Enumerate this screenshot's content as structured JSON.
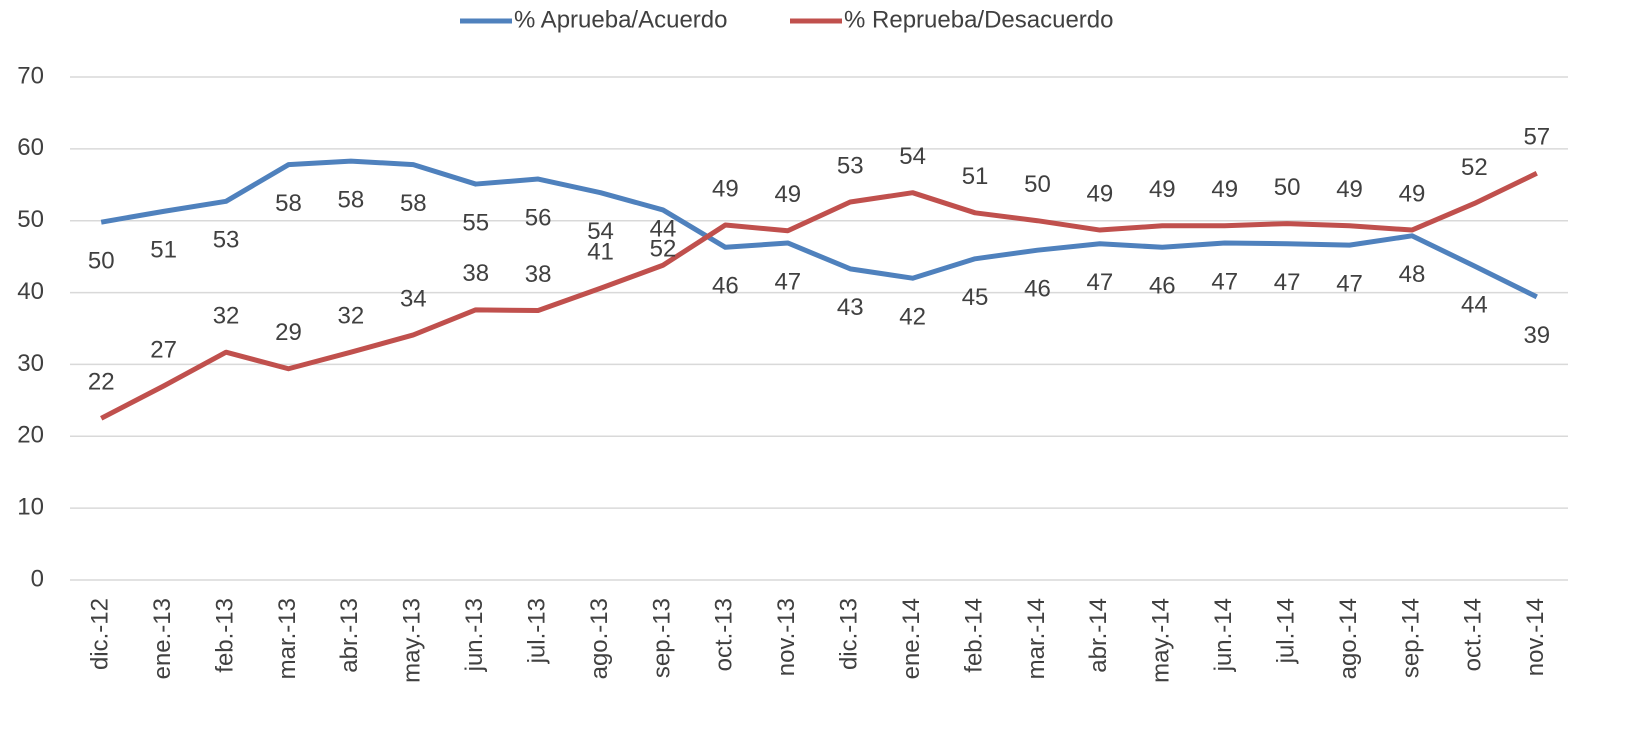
{
  "chart_data": {
    "type": "line",
    "categories": [
      "dic.-12",
      "ene.-13",
      "feb.-13",
      "mar.-13",
      "abr.-13",
      "may.-13",
      "jun.-13",
      "jul.-13",
      "ago.-13",
      "sep.-13",
      "oct.-13",
      "nov.-13",
      "dic.-13",
      "ene.-14",
      "feb.-14",
      "mar.-14",
      "abr.-14",
      "may.-14",
      "jun.-14",
      "jul.-14",
      "ago.-14",
      "sep.-14",
      "oct.-14",
      "nov.-14"
    ],
    "series": [
      {
        "name": "% Aprueba/Acuerdo",
        "color": "#4f81bd",
        "values": [
          49.8,
          51.3,
          52.7,
          57.8,
          58.3,
          57.8,
          55.1,
          55.8,
          53.9,
          51.5,
          46.3,
          46.9,
          43.3,
          42.0,
          44.7,
          45.9,
          46.8,
          46.3,
          46.9,
          46.8,
          46.6,
          47.9,
          43.7,
          39.4
        ],
        "value_labels": [
          "50",
          "51",
          "53",
          "58",
          "58",
          "58",
          "55",
          "56",
          "54",
          "52",
          "46",
          "47",
          "43",
          "42",
          "45",
          "46",
          "47",
          "46",
          "47",
          "47",
          "47",
          "48",
          "44",
          "39"
        ]
      },
      {
        "name": "% Reprueba/Desacuerdo",
        "color": "#c0504d",
        "values": [
          22.5,
          27.0,
          31.7,
          29.4,
          31.7,
          34.1,
          37.6,
          37.5,
          40.6,
          43.8,
          49.4,
          48.6,
          52.6,
          53.9,
          51.1,
          50.0,
          48.7,
          49.3,
          49.3,
          49.6,
          49.3,
          48.7,
          52.4,
          56.6
        ],
        "value_labels": [
          "22",
          "27",
          "32",
          "29",
          "32",
          "34",
          "38",
          "38",
          "41",
          "44",
          "49",
          "49",
          "53",
          "54",
          "51",
          "50",
          "49",
          "49",
          "49",
          "50",
          "49",
          "49",
          "52",
          "57"
        ]
      }
    ],
    "ylim": [
      0,
      70
    ],
    "yticks": [
      0,
      10,
      20,
      30,
      40,
      50,
      60,
      70
    ],
    "grid": true,
    "legend": "top"
  }
}
